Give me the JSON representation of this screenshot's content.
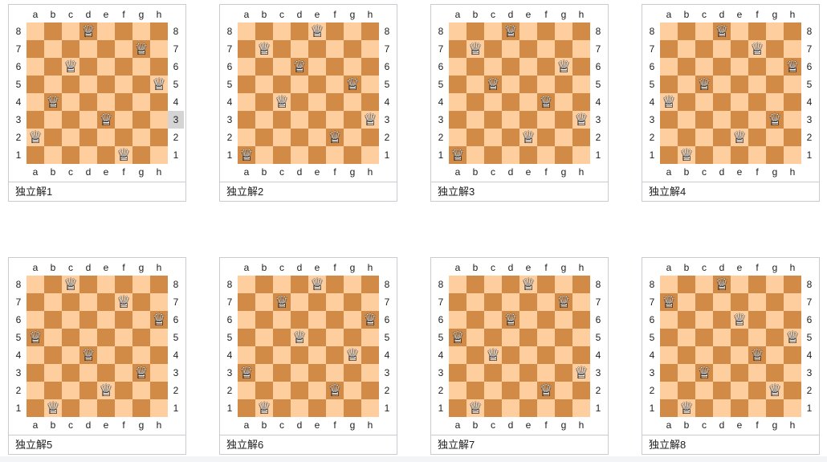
{
  "board_labels": {
    "files": [
      "a",
      "b",
      "c",
      "d",
      "e",
      "f",
      "g",
      "h"
    ],
    "ranks_top_to_bottom": [
      "8",
      "7",
      "6",
      "5",
      "4",
      "3",
      "2",
      "1"
    ]
  },
  "colors": {
    "light_square": "#ffce9e",
    "dark_square": "#d18b47",
    "box_border": "#c8ccd1",
    "label_text": "#202122",
    "rank_highlight_bg": "#d4d4d4"
  },
  "icons": {
    "queen_fill_glyph": "♛",
    "queen_outline_glyph": "♕"
  },
  "highlight": {
    "board_index": 0,
    "side": "right",
    "rank": "3"
  },
  "boards": [
    {
      "caption": "独立解1",
      "queens": [
        "a2",
        "b4",
        "c6",
        "d8",
        "e3",
        "f1",
        "g7",
        "h5"
      ]
    },
    {
      "caption": "独立解2",
      "queens": [
        "a1",
        "b7",
        "c4",
        "d6",
        "e8",
        "f2",
        "g5",
        "h3"
      ]
    },
    {
      "caption": "独立解3",
      "queens": [
        "a1",
        "b7",
        "c5",
        "d8",
        "e2",
        "f4",
        "g6",
        "h3"
      ]
    },
    {
      "caption": "独立解4",
      "queens": [
        "a4",
        "b1",
        "c5",
        "d8",
        "e2",
        "f7",
        "g3",
        "h6"
      ]
    },
    {
      "caption": "独立解5",
      "queens": [
        "a5",
        "b1",
        "c8",
        "d4",
        "e2",
        "f7",
        "g3",
        "h6"
      ]
    },
    {
      "caption": "独立解6",
      "queens": [
        "a3",
        "b1",
        "c7",
        "d5",
        "e8",
        "f2",
        "g4",
        "h6"
      ]
    },
    {
      "caption": "独立解7",
      "queens": [
        "a5",
        "b1",
        "c4",
        "d6",
        "e8",
        "f2",
        "g7",
        "h3"
      ]
    },
    {
      "caption": "独立解8",
      "queens": [
        "a7",
        "b1",
        "c3",
        "d8",
        "e6",
        "f4",
        "g2",
        "h5"
      ]
    }
  ]
}
